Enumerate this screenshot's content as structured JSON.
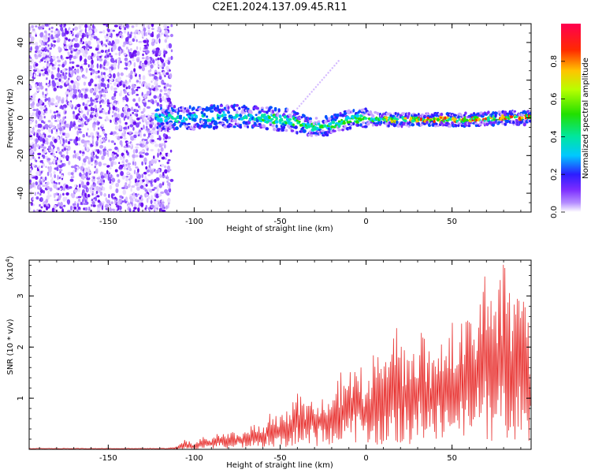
{
  "page": {
    "title": "C2E1.2024.137.09.45.R11"
  },
  "chart_data": [
    {
      "type": "heatmap",
      "title": "C2E1.2024.137.09.45.R11",
      "xlabel": "Height of straight line (km)",
      "ylabel": "Frequency (Hz)",
      "xlim": [
        -196,
        96
      ],
      "ylim": [
        -50,
        50
      ],
      "xticks": [
        -150,
        -100,
        -50,
        0,
        50
      ],
      "yticks": [
        -40,
        -20,
        0,
        20,
        40
      ],
      "colorbar": {
        "label": "Normalized spectral amplitude",
        "range": [
          0.0,
          1.0
        ],
        "ticks": [
          "0.0",
          "0.2",
          "0.4",
          "0.6",
          "0.8"
        ],
        "tick_values": [
          0.0,
          0.2,
          0.4,
          0.6,
          0.8
        ]
      },
      "signal_trace": {
        "description_x": [
          -120,
          -100,
          -80,
          -60,
          -40,
          -32,
          -20,
          -10,
          0,
          10,
          20,
          40,
          60,
          80,
          96
        ],
        "center_frequency": [
          0,
          0,
          1,
          0,
          -2,
          -5,
          -4,
          -1,
          0,
          -1,
          -1,
          -1,
          -1,
          0,
          0
        ]
      },
      "noise_region_x": [
        -196,
        -115
      ]
    },
    {
      "type": "line",
      "xlabel": "Height of straight line (km)",
      "ylabel": "SNR (10 * v/v)",
      "scale_label": "(x10",
      "scale_exp": "4",
      "scale_close": ")",
      "xlim": [
        -196,
        96
      ],
      "ylim": [
        0,
        3.7
      ],
      "xticks": [
        -150,
        -100,
        -50,
        0,
        50
      ],
      "yticks": [
        1,
        2,
        3
      ],
      "series": [
        {
          "color": "#e8312f",
          "x": [
            -196,
            -170,
            -140,
            -120,
            -110,
            -105,
            -100,
            -95,
            -90,
            -85,
            -80,
            -75,
            -70,
            -65,
            -60,
            -55,
            -50,
            -45,
            -40,
            -35,
            -30,
            -25,
            -20,
            -15,
            -10,
            -5,
            0,
            5,
            10,
            15,
            20,
            25,
            30,
            35,
            40,
            45,
            50,
            55,
            60,
            65,
            70,
            75,
            80,
            85,
            90,
            96
          ],
          "values": [
            0.01,
            0.01,
            0.01,
            0.02,
            0.05,
            0.2,
            0.1,
            0.25,
            0.2,
            0.35,
            0.3,
            0.4,
            0.35,
            0.6,
            0.45,
            0.8,
            0.7,
            0.9,
            1.1,
            1.0,
            1.25,
            1.1,
            1.3,
            1.5,
            1.6,
            1.85,
            1.35,
            2.0,
            1.55,
            2.7,
            2.3,
            1.9,
            2.5,
            2.2,
            2.0,
            2.45,
            2.5,
            2.5,
            2.7,
            3.1,
            3.6,
            2.8,
            3.65,
            3.1,
            3.4,
            2.1
          ]
        }
      ]
    }
  ]
}
